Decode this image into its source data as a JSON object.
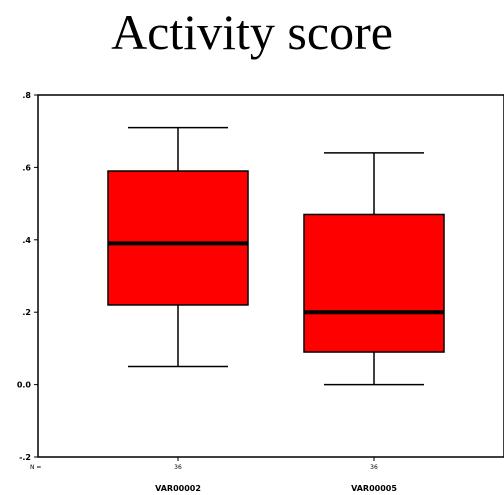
{
  "chart_data": {
    "type": "box",
    "title": "Activity score",
    "xlabel": "",
    "ylabel": "",
    "ylim": [
      -0.2,
      0.8
    ],
    "yticks": [
      {
        "value": 0.8,
        "label": ".8"
      },
      {
        "value": 0.6,
        "label": ".6"
      },
      {
        "value": 0.4,
        "label": ".4"
      },
      {
        "value": 0.2,
        "label": ".2"
      },
      {
        "value": 0.0,
        "label": "0.0"
      },
      {
        "value": -0.2,
        "label": "-.2"
      }
    ],
    "n_label": "N =",
    "categories": [
      "VAR00002",
      "VAR00005"
    ],
    "n_values": [
      "36",
      "36"
    ],
    "boxes": [
      {
        "name": "VAR00002",
        "min": 0.05,
        "q1": 0.22,
        "median": 0.39,
        "q3": 0.59,
        "max": 0.71
      },
      {
        "name": "VAR00005",
        "min": 0.0,
        "q1": 0.09,
        "median": 0.2,
        "q3": 0.47,
        "max": 0.64
      }
    ],
    "box_color": "#ff0000",
    "grid": false
  }
}
